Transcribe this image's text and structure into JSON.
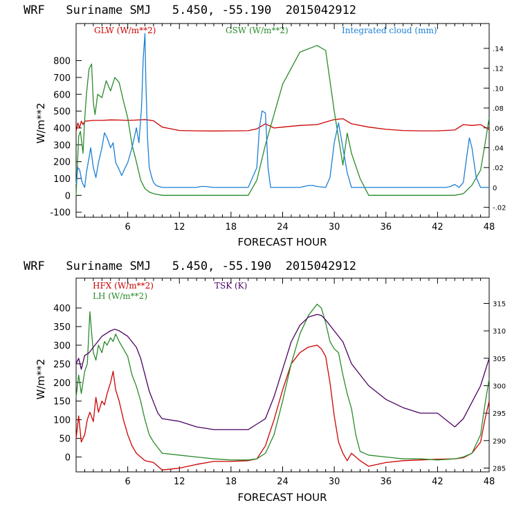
{
  "chart_data": [
    {
      "type": "line",
      "title": "WRF   Suriname SMJ   5.450, -55.190  2015042912",
      "xlabel": "FORECAST HOUR",
      "ylabel": "W/m**2",
      "xlim": [
        0,
        48
      ],
      "ylim": [
        -130,
        1020
      ],
      "y2lim": [
        -0.03,
        0.165
      ],
      "xticks": [
        "6",
        "12",
        "18",
        "24",
        "30",
        "36",
        "42",
        "48"
      ],
      "yticks": [
        "-100",
        "0",
        "100",
        "200",
        "300",
        "400",
        "500",
        "600",
        "700",
        "800"
      ],
      "y2ticks": [
        "-.02",
        "0",
        ".02",
        ".04",
        ".06",
        ".08",
        ".10",
        ".12",
        ".14"
      ],
      "colors": {
        "glw": "#cc0000",
        "gsw": "#2a8a2a",
        "cloud": "#1a7fd4"
      },
      "series": [
        {
          "name": "GLW (W/m**2)",
          "key": "glw",
          "axis": "left",
          "x": [
            0,
            0.2,
            0.4,
            0.6,
            0.8,
            1,
            2,
            3,
            4,
            5,
            6,
            7,
            8,
            9,
            10,
            12,
            14,
            16,
            18,
            20,
            21,
            22,
            23,
            24,
            26,
            28,
            30,
            31,
            32,
            34,
            36,
            38,
            40,
            42,
            44,
            45,
            46,
            47,
            48
          ],
          "y": [
            380,
            430,
            400,
            440,
            420,
            440,
            445,
            445,
            448,
            447,
            445,
            447,
            450,
            443,
            405,
            385,
            383,
            382,
            383,
            384,
            395,
            425,
            400,
            405,
            415,
            420,
            450,
            455,
            425,
            405,
            392,
            385,
            383,
            383,
            388,
            420,
            415,
            420,
            390
          ]
        },
        {
          "name": "GSW (W/m**2)",
          "key": "gsw",
          "axis": "left",
          "x": [
            0,
            0.3,
            0.5,
            0.8,
            1,
            1.2,
            1.5,
            1.8,
            2,
            2.2,
            2.5,
            3,
            3.5,
            4,
            4.5,
            5,
            5.5,
            6,
            6.5,
            7,
            7.5,
            8,
            8.5,
            9,
            9.5,
            10,
            10.5,
            11,
            20,
            21,
            22,
            24,
            26,
            28,
            29,
            30,
            31,
            31.5,
            32,
            33,
            34,
            36,
            44,
            45,
            46,
            47,
            47.5,
            48
          ],
          "y": [
            0,
            350,
            380,
            250,
            450,
            600,
            750,
            780,
            550,
            480,
            600,
            580,
            680,
            620,
            700,
            670,
            560,
            460,
            300,
            200,
            90,
            40,
            20,
            10,
            5,
            0,
            0,
            0,
            0,
            90,
            300,
            660,
            850,
            890,
            860,
            500,
            180,
            370,
            250,
            100,
            0,
            0,
            0,
            10,
            60,
            150,
            300,
            460
          ]
        },
        {
          "name": "Integrated cloud (mm)",
          "key": "cloud",
          "axis": "right",
          "x": [
            0,
            0.2,
            0.4,
            0.7,
            1,
            1.2,
            1.5,
            1.7,
            2,
            2.3,
            2.6,
            3,
            3.3,
            3.6,
            4,
            4.3,
            4.6,
            5,
            5.3,
            5.6,
            6,
            6.5,
            7,
            7.3,
            7.6,
            7.8,
            8,
            8.1,
            8.3,
            8.5,
            8.8,
            9,
            9.3,
            9.6,
            10,
            12,
            14,
            14.5,
            15,
            16,
            20,
            21,
            21.3,
            21.6,
            22,
            22.3,
            22.6,
            23,
            26,
            26.5,
            27,
            27.5,
            28,
            29,
            29.5,
            30,
            30.5,
            31,
            31.5,
            32,
            36,
            43,
            43.5,
            44,
            44.5,
            45,
            45.3,
            45.7,
            46,
            46.5,
            47,
            48
          ],
          "y": [
            0.003,
            0.02,
            0.018,
            0.005,
            0,
            0.015,
            0.03,
            0.04,
            0.02,
            0.01,
            0.025,
            0.04,
            0.055,
            0.05,
            0.04,
            0.045,
            0.025,
            0.018,
            0.012,
            0.018,
            0.025,
            0.04,
            0.06,
            0.045,
            0.08,
            0.13,
            0.155,
            0.11,
            0.05,
            0.02,
            0.01,
            0.005,
            0.002,
            0.001,
            0,
            0,
            0,
            0.001,
            0.001,
            0,
            0,
            0.02,
            0.06,
            0.077,
            0.075,
            0.02,
            0,
            0,
            0,
            0.001,
            0.002,
            0.002,
            0.001,
            0,
            0.01,
            0.045,
            0.065,
            0.04,
            0.015,
            0,
            0,
            0,
            0.001,
            0.003,
            0,
            0.005,
            0.025,
            0.05,
            0.04,
            0.01,
            0,
            0
          ]
        }
      ],
      "legend": [
        "GLW (W/m**2)",
        "GSW (W/m**2)",
        "Integrated cloud (mm)"
      ]
    },
    {
      "type": "line",
      "title": "WRF   Suriname SMJ   5.450, -55.190  2015042912",
      "xlabel": "FORECAST HOUR",
      "ylabel": "W/m**2",
      "xlim": [
        0,
        48
      ],
      "ylim": [
        -40,
        480
      ],
      "y2lim": [
        284.3,
        319.6
      ],
      "xticks": [
        "6",
        "12",
        "18",
        "24",
        "30",
        "36",
        "42",
        "48"
      ],
      "yticks": [
        "0",
        "50",
        "100",
        "150",
        "200",
        "250",
        "300",
        "350",
        "400"
      ],
      "y2ticks": [
        "285",
        "290",
        "295",
        "300",
        "305",
        "310",
        "315"
      ],
      "colors": {
        "hfx": "#cc0000",
        "lh": "#2a8a2a",
        "tsk": "#4a0060"
      },
      "series": [
        {
          "name": "HFX (W/m**2)",
          "key": "hfx",
          "axis": "left",
          "x": [
            0,
            0.3,
            0.6,
            1,
            1.3,
            1.6,
            2,
            2.3,
            2.6,
            3,
            3.3,
            3.6,
            4,
            4.3,
            4.6,
            5,
            5.5,
            6,
            6.5,
            7,
            7.5,
            8,
            9,
            10,
            12,
            14,
            16,
            18,
            20,
            21,
            22,
            23,
            24,
            25,
            26,
            27,
            28,
            28.5,
            29,
            29.5,
            30,
            30.5,
            31,
            31.5,
            32,
            33,
            34,
            36,
            38,
            40,
            42,
            44,
            45,
            46,
            47,
            47.5,
            48
          ],
          "y": [
            50,
            110,
            40,
            60,
            100,
            120,
            95,
            160,
            120,
            150,
            140,
            170,
            200,
            230,
            180,
            150,
            100,
            60,
            30,
            10,
            0,
            -10,
            -15,
            -35,
            -30,
            -20,
            -12,
            -12,
            -10,
            -5,
            30,
            100,
            180,
            250,
            280,
            295,
            300,
            290,
            270,
            200,
            110,
            40,
            10,
            -10,
            10,
            -10,
            -25,
            -15,
            -10,
            -8,
            -6,
            -5,
            -2,
            10,
            40,
            100,
            150
          ]
        },
        {
          "name": "LH (W/m**2)",
          "key": "lh",
          "axis": "left",
          "x": [
            0,
            0.3,
            0.6,
            1,
            1.3,
            1.6,
            2,
            2.3,
            2.6,
            3,
            3.3,
            3.6,
            4,
            4.3,
            4.6,
            5,
            5.5,
            6,
            6.5,
            7,
            7.5,
            8,
            8.5,
            9,
            10,
            12,
            14,
            16,
            18,
            20,
            21,
            22,
            23,
            24,
            25,
            26,
            27,
            28,
            28.5,
            29,
            29.5,
            30,
            30.5,
            31,
            31.5,
            32,
            32.5,
            33,
            34,
            36,
            38,
            40,
            42,
            44,
            45,
            46,
            47,
            47.5,
            48
          ],
          "y": [
            160,
            220,
            170,
            230,
            250,
            390,
            280,
            260,
            300,
            280,
            310,
            300,
            320,
            310,
            330,
            310,
            290,
            270,
            220,
            190,
            150,
            100,
            60,
            40,
            10,
            5,
            0,
            -5,
            -8,
            -8,
            -5,
            10,
            60,
            150,
            250,
            330,
            380,
            410,
            400,
            360,
            310,
            290,
            280,
            220,
            170,
            130,
            60,
            15,
            5,
            0,
            -5,
            -5,
            -8,
            -5,
            0,
            10,
            60,
            140,
            210
          ]
        },
        {
          "name": "TSK (K)",
          "key": "tsk",
          "axis": "right",
          "x": [
            0,
            0.3,
            0.6,
            1,
            1.5,
            2,
            2.5,
            3,
            3.5,
            4,
            4.5,
            5,
            5.5,
            6,
            6.5,
            7,
            7.5,
            8,
            8.5,
            9,
            9.5,
            10,
            12,
            14,
            16,
            18,
            20,
            21,
            22,
            23,
            24,
            25,
            26,
            27,
            28,
            28.5,
            29,
            30,
            31,
            32,
            33,
            34,
            36,
            38,
            40,
            42,
            44,
            45,
            46,
            47,
            48
          ],
          "y": [
            304,
            305,
            303,
            305.5,
            306,
            307,
            308,
            309,
            309.5,
            310,
            310.3,
            310,
            309.5,
            309,
            308,
            307,
            305,
            302,
            299,
            297,
            295,
            294,
            293.5,
            292.5,
            292,
            292,
            292,
            293,
            294,
            298,
            303,
            308,
            311,
            312.5,
            313,
            312.8,
            312,
            310,
            308,
            304,
            302,
            300,
            297.5,
            296,
            295,
            295,
            292.5,
            294,
            297,
            300,
            305
          ]
        }
      ],
      "legend": [
        "HFX (W/m**2)",
        "LH (W/m**2)",
        "TSK (K)"
      ]
    }
  ]
}
